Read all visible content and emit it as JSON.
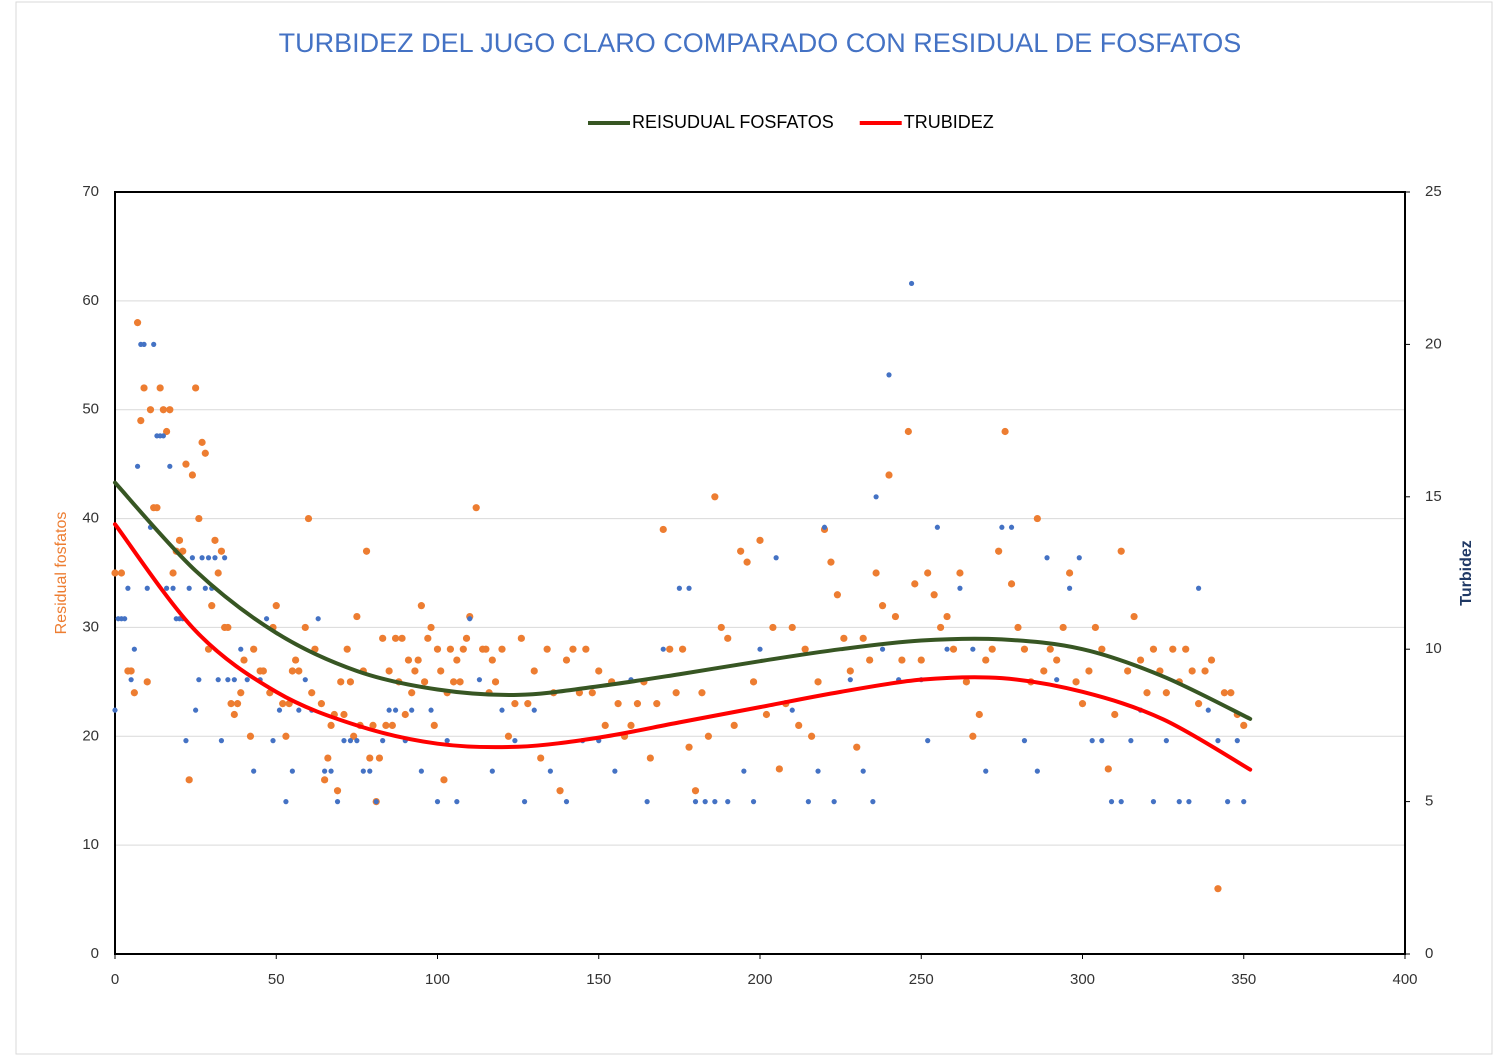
{
  "chart_data": {
    "type": "scatter",
    "title": "TURBIDEZ DEL JUGO  CLARO COMPARADO CON RESIDUAL DE FOSFATOS",
    "y_label": "Residual fosfatos",
    "y2_label": "Turbidez",
    "xlim": [
      0,
      400
    ],
    "xticks": [
      0,
      50,
      100,
      150,
      200,
      250,
      300,
      350,
      400
    ],
    "ylim": [
      0,
      70
    ],
    "yticks": [
      0,
      10,
      20,
      30,
      40,
      50,
      60,
      70
    ],
    "y2lim": [
      0,
      25
    ],
    "y2ticks": [
      0,
      5,
      10,
      15,
      20,
      25
    ],
    "grid": true,
    "legend": "top",
    "series": [
      {
        "type": "scatter",
        "color": "#ed7d31",
        "axis": "y",
        "x": [
          0,
          2,
          4,
          5,
          6,
          7,
          8,
          9,
          10,
          11,
          12,
          13,
          14,
          15,
          16,
          17,
          18,
          19,
          20,
          21,
          22,
          23,
          24,
          25,
          26,
          27,
          28,
          29,
          30,
          31,
          32,
          33,
          34,
          35,
          36,
          37,
          38,
          39,
          40,
          42,
          43,
          45,
          46,
          48,
          49,
          50,
          52,
          53,
          54,
          55,
          56,
          57,
          59,
          60,
          61,
          62,
          64,
          65,
          66,
          67,
          68,
          69,
          70,
          71,
          72,
          73,
          74,
          75,
          76,
          77,
          78,
          79,
          80,
          81,
          82,
          83,
          84,
          85,
          86,
          87,
          88,
          89,
          90,
          91,
          92,
          93,
          94,
          95,
          96,
          97,
          98,
          99,
          100,
          101,
          102,
          103,
          104,
          105,
          106,
          107,
          108,
          109,
          110,
          112,
          114,
          115,
          116,
          117,
          118,
          120,
          122,
          124,
          126,
          128,
          130,
          132,
          134,
          136,
          138,
          140,
          142,
          144,
          146,
          148,
          150,
          152,
          154,
          156,
          158,
          160,
          162,
          164,
          166,
          168,
          170,
          172,
          174,
          176,
          178,
          180,
          182,
          184,
          186,
          188,
          190,
          192,
          194,
          196,
          198,
          200,
          202,
          204,
          206,
          208,
          210,
          212,
          214,
          216,
          218,
          220,
          222,
          224,
          226,
          228,
          230,
          232,
          234,
          236,
          238,
          240,
          242,
          244,
          246,
          248,
          250,
          252,
          254,
          256,
          258,
          260,
          262,
          264,
          266,
          268,
          270,
          272,
          274,
          276,
          278,
          280,
          282,
          284,
          286,
          288,
          290,
          292,
          294,
          296,
          298,
          300,
          302,
          304,
          306,
          308,
          310,
          312,
          314,
          316,
          318,
          320,
          322,
          324,
          326,
          328,
          330,
          332,
          334,
          336,
          338,
          340,
          342,
          344,
          346,
          348,
          350
        ],
        "values": [
          35,
          35,
          26,
          26,
          24,
          58,
          49,
          52,
          25,
          50,
          41,
          41,
          52,
          50,
          48,
          50,
          35,
          37,
          38,
          37,
          45,
          16,
          44,
          52,
          40,
          47,
          46,
          28,
          32,
          38,
          35,
          37,
          30,
          30,
          23,
          22,
          23,
          24,
          27,
          20,
          28,
          26,
          26,
          24,
          30,
          32,
          23,
          20,
          23,
          26,
          27,
          26,
          30,
          40,
          24,
          28,
          23,
          16,
          18,
          21,
          22,
          15,
          25,
          22,
          28,
          25,
          20,
          31,
          21,
          26,
          37,
          18,
          21,
          14,
          18,
          29,
          21,
          26,
          21,
          29,
          25,
          29,
          22,
          27,
          24,
          26,
          27,
          32,
          25,
          29,
          30,
          21,
          28,
          26,
          16,
          24,
          28,
          25,
          27,
          25,
          28,
          29,
          31,
          41,
          28,
          28,
          24,
          27,
          25,
          28,
          20,
          23,
          29,
          23,
          26,
          18,
          28,
          24,
          15,
          27,
          28,
          24,
          28,
          24,
          26,
          21,
          25,
          23,
          20,
          21,
          23,
          25,
          18,
          23,
          39,
          28,
          24,
          28,
          19,
          15,
          24,
          20,
          42,
          30,
          29,
          21,
          37,
          36,
          25,
          38,
          22,
          30,
          17,
          23,
          30,
          21,
          28,
          20,
          25,
          39,
          36,
          33,
          29,
          26,
          19,
          29,
          27,
          35,
          32,
          44,
          31,
          27,
          48,
          34,
          27,
          35,
          33,
          30,
          31,
          28,
          35,
          25,
          20,
          22,
          27,
          28,
          37,
          48,
          34,
          30,
          28,
          25,
          40,
          26,
          28,
          27,
          30,
          35,
          25,
          23,
          26,
          30,
          28,
          17,
          22,
          37,
          26,
          31,
          27,
          24,
          28,
          26,
          24,
          28,
          25,
          28,
          26,
          23,
          26,
          27,
          6,
          24,
          24,
          22,
          21
        ]
      },
      {
        "type": "scatter",
        "color": "#4472c4",
        "axis": "y2",
        "x": [
          0,
          1,
          2,
          3,
          4,
          5,
          6,
          7,
          8,
          9,
          10,
          11,
          12,
          13,
          14,
          15,
          16,
          17,
          18,
          19,
          20,
          21,
          22,
          23,
          24,
          25,
          26,
          27,
          28,
          29,
          30,
          31,
          32,
          33,
          34,
          35,
          37,
          39,
          41,
          43,
          45,
          47,
          49,
          51,
          53,
          55,
          57,
          59,
          61,
          63,
          65,
          67,
          69,
          71,
          73,
          75,
          77,
          79,
          81,
          83,
          85,
          87,
          90,
          92,
          95,
          98,
          100,
          103,
          106,
          110,
          113,
          117,
          120,
          124,
          127,
          130,
          135,
          140,
          145,
          150,
          155,
          160,
          165,
          170,
          175,
          178,
          180,
          183,
          186,
          190,
          195,
          198,
          200,
          205,
          210,
          215,
          218,
          220,
          223,
          228,
          232,
          235,
          236,
          238,
          240,
          243,
          247,
          250,
          252,
          255,
          258,
          262,
          266,
          270,
          275,
          278,
          282,
          286,
          289,
          292,
          296,
          299,
          303,
          306,
          309,
          312,
          315,
          318,
          322,
          326,
          330,
          333,
          336,
          339,
          342,
          345,
          348,
          350
        ],
        "values": [
          8,
          11,
          11,
          11,
          12,
          9,
          10,
          16,
          20,
          20,
          12,
          14,
          20,
          17,
          17,
          17,
          12,
          16,
          12,
          11,
          11,
          11,
          7,
          12,
          13,
          8,
          9,
          13,
          12,
          13,
          12,
          13,
          9,
          7,
          13,
          9,
          9,
          10,
          9,
          6,
          9,
          11,
          7,
          8,
          5,
          6,
          8,
          9,
          8,
          11,
          6,
          6,
          5,
          7,
          7,
          7,
          6,
          6,
          5,
          7,
          8,
          8,
          7,
          8,
          6,
          8,
          5,
          7,
          5,
          11,
          9,
          6,
          8,
          7,
          5,
          8,
          6,
          5,
          7,
          7,
          6,
          9,
          5,
          10,
          12,
          12,
          5,
          5,
          5,
          5,
          6,
          5,
          10,
          13,
          8,
          5,
          6,
          14,
          5,
          9,
          6,
          5,
          15,
          10,
          19,
          9,
          22,
          9,
          7,
          14,
          10,
          12,
          10,
          6,
          14,
          14,
          7,
          6,
          13,
          9,
          12,
          13,
          7,
          7,
          5,
          5,
          7,
          8,
          5,
          7,
          5,
          5,
          12,
          8,
          7,
          5,
          7,
          5
        ]
      },
      {
        "type": "line",
        "name": "REISUDUAL FOSFATOS",
        "color": "#375623",
        "axis": "y",
        "x": [
          0,
          25,
          50,
          75,
          100,
          125,
          150,
          175,
          200,
          225,
          250,
          275,
          300,
          325,
          352
        ],
        "values": [
          43.3,
          35.2,
          29.5,
          26,
          24.3,
          23.8,
          24.6,
          25.7,
          26.9,
          28,
          28.8,
          28.9,
          28,
          25.5,
          21.6
        ]
      },
      {
        "type": "line",
        "name": "TRUBIDEZ",
        "color": "#ff0000",
        "axis": "y2",
        "x": [
          0,
          25,
          50,
          75,
          100,
          125,
          150,
          175,
          200,
          225,
          250,
          275,
          300,
          325,
          352
        ],
        "values": [
          14.1,
          10.6,
          8.6,
          7.5,
          6.9,
          6.8,
          7.1,
          7.6,
          8.1,
          8.6,
          9,
          9.05,
          8.6,
          7.7,
          6.05
        ]
      }
    ]
  }
}
